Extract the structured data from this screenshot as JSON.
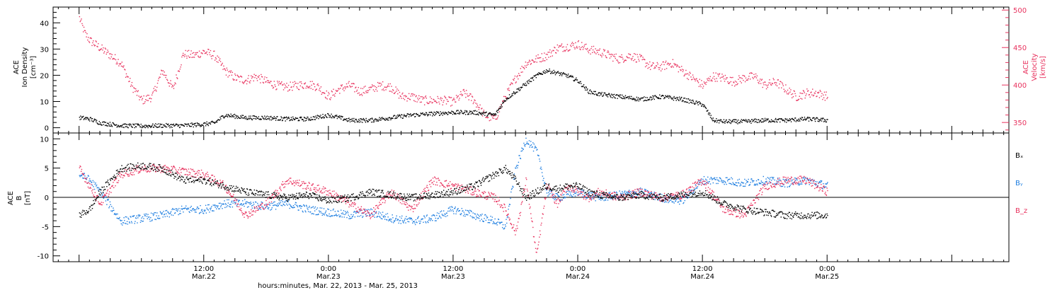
{
  "xaxis": {
    "title": "hours:minutes, Mar. 22, 2013 - Mar. 25, 2013",
    "ticks": [
      {
        "t": 12,
        "time": "12:00",
        "date": "Mar.22"
      },
      {
        "t": 24,
        "time": "0:00",
        "date": "Mar.23"
      },
      {
        "t": 36,
        "time": "12:00",
        "date": "Mar.23"
      },
      {
        "t": 48,
        "time": "0:00",
        "date": "Mar.24"
      },
      {
        "t": 60,
        "time": "12:00",
        "date": "Mar.24"
      },
      {
        "t": 72,
        "time": "0:00",
        "date": "Mar.25"
      }
    ]
  },
  "chart_data": [
    {
      "type": "scatter",
      "ylabel_left": [
        "ACE",
        "Ion Density",
        "[cm⁻³]"
      ],
      "ylabel_right": [
        "ACE",
        "Velocity",
        "[km/s]"
      ],
      "ylim": [
        -2,
        46
      ],
      "yticks": [
        0,
        10,
        20,
        30,
        40
      ],
      "ylim_right": [
        336,
        504
      ],
      "yticks_right": [
        350,
        400,
        450,
        500
      ],
      "colors": {
        "density": "#000000",
        "velocity": "#e8325e"
      },
      "series": [
        {
          "name": "Ion Density",
          "axis": "left",
          "x_hours": [
            0,
            1,
            2,
            4,
            6,
            8,
            10,
            12,
            13,
            14,
            16,
            18,
            20,
            22,
            24,
            26,
            28,
            30,
            32,
            34,
            36,
            38,
            40,
            41,
            42,
            44,
            45,
            46,
            47,
            48,
            49,
            50,
            52,
            54,
            56,
            58,
            60,
            61,
            62,
            64,
            66,
            68,
            70,
            72
          ],
          "values": [
            4,
            3.5,
            2,
            1,
            0.8,
            1,
            1,
            1.5,
            2,
            5,
            4,
            4,
            3.5,
            3.5,
            5,
            3,
            3,
            4,
            5,
            5.5,
            6,
            6,
            5,
            11,
            14,
            20,
            22,
            21,
            20,
            18,
            14,
            13,
            12,
            11,
            12,
            11,
            9,
            3,
            2.5,
            2.5,
            3,
            3,
            3.5,
            3
          ]
        },
        {
          "name": "Velocity",
          "axis": "right",
          "x_hours": [
            0,
            0.5,
            1,
            2,
            3,
            4,
            5,
            6,
            7,
            8,
            9,
            10,
            11,
            12,
            13,
            14,
            15,
            16,
            17,
            18,
            19,
            20,
            21,
            22,
            23,
            24,
            25,
            26,
            27,
            28,
            29,
            30,
            31,
            32,
            33,
            34,
            35,
            36,
            37,
            38,
            39,
            40,
            41,
            42,
            43,
            44,
            45,
            46,
            47,
            48,
            49,
            50,
            51,
            52,
            53,
            54,
            55,
            56,
            57,
            58,
            59,
            60,
            61,
            62,
            63,
            64,
            65,
            66,
            67,
            68,
            69,
            70,
            71,
            72
          ],
          "values": [
            490,
            470,
            460,
            450,
            440,
            430,
            400,
            380,
            385,
            420,
            395,
            442,
            440,
            445,
            440,
            420,
            410,
            407,
            412,
            405,
            400,
            398,
            400,
            402,
            398,
            385,
            395,
            400,
            392,
            395,
            400,
            398,
            385,
            385,
            380,
            380,
            380,
            378,
            390,
            380,
            360,
            355,
            385,
            410,
            430,
            435,
            440,
            450,
            452,
            455,
            448,
            445,
            440,
            435,
            440,
            435,
            425,
            425,
            430,
            420,
            410,
            400,
            412,
            410,
            405,
            410,
            412,
            400,
            405,
            395,
            385,
            390,
            390,
            385
          ]
        }
      ]
    },
    {
      "type": "scatter",
      "ylabel_left": [
        "ACE",
        "B",
        "[nT]"
      ],
      "ylim": [
        -11,
        11
      ],
      "yticks": [
        -10,
        -5,
        0,
        5,
        10
      ],
      "zero_line": true,
      "legend": [
        "Bₓ",
        "Bᵧ",
        "B_z"
      ],
      "colors": {
        "Bx": "#000000",
        "By": "#1e7ee0",
        "Bz": "#e8325e"
      },
      "series": [
        {
          "name": "Bₓ",
          "x_hours": [
            0,
            1,
            2,
            4,
            6,
            8,
            10,
            12,
            14,
            16,
            18,
            20,
            22,
            24,
            26,
            28,
            30,
            32,
            34,
            36,
            38,
            40,
            41,
            42,
            43,
            44,
            45,
            46,
            47,
            48,
            49,
            50,
            52,
            54,
            56,
            58,
            60,
            62,
            64,
            66,
            68,
            70,
            72
          ],
          "values": [
            -3,
            -2,
            1,
            5,
            5.5,
            5,
            3,
            3,
            2,
            1,
            0.5,
            0,
            0.5,
            -0.5,
            0,
            1,
            0.5,
            0,
            0.5,
            1,
            2,
            4,
            5,
            3,
            0,
            1,
            2,
            1.5,
            2,
            2,
            1,
            0.5,
            0,
            0.5,
            0,
            0.5,
            1,
            -1,
            -2,
            -2.5,
            -3,
            -3,
            -3
          ]
        },
        {
          "name": "Bᵧ",
          "x_hours": [
            0,
            1,
            2,
            4,
            6,
            8,
            10,
            12,
            14,
            16,
            18,
            20,
            22,
            24,
            26,
            28,
            30,
            32,
            34,
            36,
            38,
            40,
            41,
            42,
            43,
            44,
            45,
            46,
            47,
            48,
            49,
            50,
            52,
            54,
            56,
            58,
            60,
            62,
            64,
            66,
            68,
            70,
            72
          ],
          "values": [
            4,
            3,
            1,
            -4,
            -3.5,
            -3,
            -2,
            -2,
            -1,
            -1,
            -1.5,
            -1,
            -2,
            -2.5,
            -3,
            -2.5,
            -3.5,
            -4,
            -3.5,
            -2,
            -3,
            -4,
            -5,
            5,
            10,
            8,
            1,
            0,
            0.5,
            1,
            0.5,
            0,
            0.5,
            1,
            0,
            -0.5,
            3,
            3,
            2.5,
            3,
            2.5,
            3,
            2
          ]
        },
        {
          "name": "B_z",
          "x_hours": [
            0,
            1,
            2,
            4,
            6,
            8,
            10,
            12,
            14,
            16,
            18,
            20,
            22,
            24,
            26,
            28,
            30,
            32,
            34,
            36,
            38,
            40,
            41,
            42,
            43,
            44,
            45,
            46,
            47,
            48,
            49,
            50,
            52,
            54,
            56,
            58,
            60,
            62,
            64,
            66,
            68,
            70,
            72
          ],
          "values": [
            5,
            2,
            -1,
            4,
            5,
            5,
            4.5,
            4,
            2,
            -3,
            -1,
            3,
            2,
            1,
            -1,
            -3,
            1,
            -2,
            3,
            2,
            1,
            0,
            -2,
            -6,
            3,
            -10,
            2,
            -1,
            2,
            1,
            0,
            1,
            0,
            1,
            0,
            0.5,
            3,
            -2,
            -3,
            2,
            3,
            3,
            1
          ]
        }
      ]
    }
  ]
}
